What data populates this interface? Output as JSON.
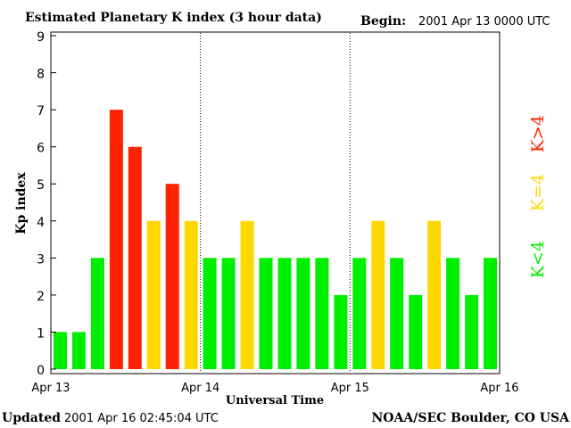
{
  "header": {
    "title": "Estimated Planetary K index (3 hour data)",
    "begin_label": "Begin:",
    "begin_value": "2001 Apr 13 0000 UTC"
  },
  "footer": {
    "updated_label": "Updated",
    "updated_value": "2001 Apr 16 02:45:04 UTC",
    "source": "NOAA/SEC Boulder, CO USA"
  },
  "legend": {
    "high": "K>4",
    "mid": "K=4",
    "low": "K<4",
    "colors": {
      "high": "#ff2200",
      "mid": "#ffd700",
      "low": "#00ee00"
    }
  },
  "chart_data": {
    "type": "bar",
    "title": "Estimated Planetary K index (3 hour data)",
    "xlabel": "Universal Time",
    "ylabel": "Kp index",
    "ylim": [
      0,
      9
    ],
    "yticks": [
      "0",
      "1",
      "2",
      "3",
      "4",
      "5",
      "6",
      "7",
      "8",
      "9"
    ],
    "xtick_labels": [
      "Apr 13",
      "Apr 14",
      "Apr 15",
      "Apr 16"
    ],
    "day_separators": [
      "Apr 14",
      "Apr 15"
    ],
    "bars_per_day": 8,
    "values": [
      1,
      1,
      3,
      7,
      6,
      4,
      5,
      4,
      3,
      3,
      4,
      3,
      3,
      3,
      3,
      2,
      3,
      4,
      3,
      2,
      4,
      3,
      2,
      3
    ],
    "color_rule": {
      "low": "K<4",
      "mid": "K=4",
      "high": "K>4"
    }
  }
}
